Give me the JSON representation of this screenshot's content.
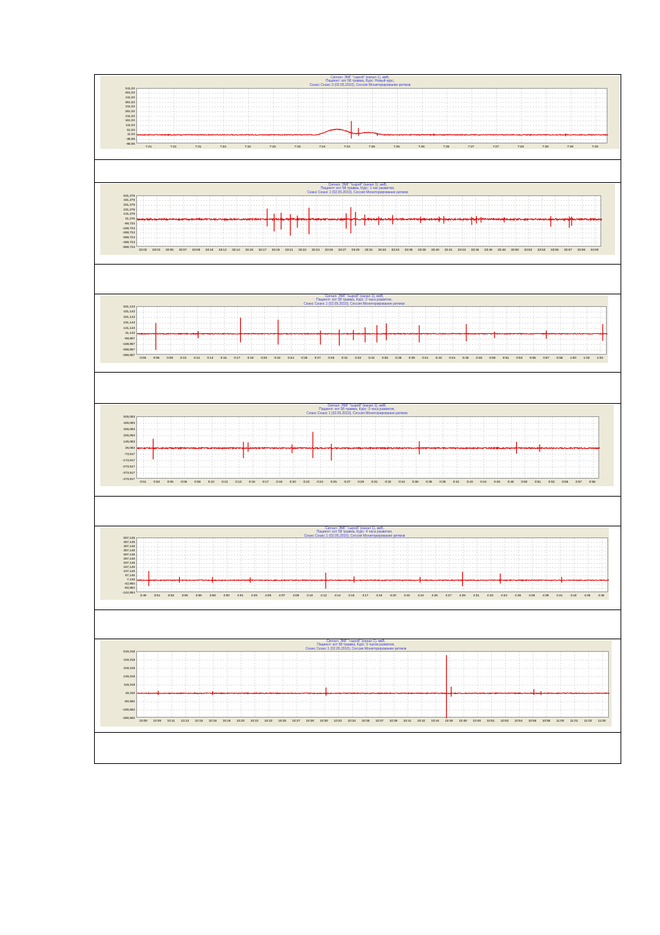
{
  "colors": {
    "signal": "#e10000",
    "header_text": "#3b3bd6",
    "panel_bg": "#ece9d8",
    "grid": "#bdbdbd"
  },
  "chart_data": [
    {
      "type": "line",
      "header": [
        "Сигнал: ЭМГ \"сырой\" (канал 1), мкВ,",
        "Пациент: кот 58 травма, Курс: Новый курс,",
        "Сеанс Сеанс 3 (02.05.2010), Сессия    Мониторирование ритмов"
      ],
      "y_ticks": [
        "511,04",
        "461,04",
        "411,04",
        "361,04",
        "311,04",
        "261,04",
        "211,04",
        "161,04",
        "111,04",
        "61,04",
        "11,04",
        "-38,96",
        "-88,96"
      ],
      "x_ticks": [
        "7:21",
        "7:21",
        "7:21",
        "7:22",
        "7:22",
        "7:23",
        "7:23",
        "7:24",
        "7:24",
        "7:25",
        "7:25",
        "7:26",
        "7:26",
        "7:27",
        "7:27",
        "7:28",
        "7:28",
        "7:29",
        "7:29"
      ],
      "ylim": [
        -88.96,
        511.04
      ],
      "baseline": 11.04,
      "noise": 4,
      "spikes": [
        {
          "pos": 0.425,
          "up": 60,
          "down": 0,
          "width": 0.05,
          "smooth": true
        },
        {
          "pos": 0.455,
          "up": 150,
          "down": 40,
          "width": 0.003
        },
        {
          "pos": 0.47,
          "up": 75,
          "down": 10,
          "width": 0.003
        },
        {
          "pos": 0.49,
          "up": 25,
          "down": 0,
          "width": 0.04,
          "smooth": true
        },
        {
          "pos": 0.51,
          "up": 20,
          "down": 10,
          "width": 0.003
        },
        {
          "pos": 0.63,
          "up": 15,
          "down": 10,
          "width": 0.003
        },
        {
          "pos": 0.91,
          "up": 15,
          "down": 15,
          "width": 0.003
        }
      ],
      "caption": ""
    },
    {
      "type": "line",
      "header": [
        "Сигнал: ЭМГ \"сырой\" (канал 1), мкВ,",
        "Пациент: кот 58 травма, Курс: 1 час развития,",
        "Сеанс Сеанс 1 (02.05.2010), Сессия    Мониторирование ритмов"
      ],
      "y_ticks": [
        "531,276",
        "431,276",
        "331,276",
        "231,276",
        "131,276",
        "31,276",
        "-68,724",
        "-168,724",
        "-268,724",
        "-368,724",
        "-468,724",
        "-568,724"
      ],
      "x_ticks": [
        "33:02",
        "33:03",
        "33:05",
        "33:07",
        "33:08",
        "33:10",
        "33:12",
        "33:14",
        "33:15",
        "33:17",
        "33:19",
        "33:21",
        "33:22",
        "33:24",
        "33:26",
        "33:27",
        "33:29",
        "33:31",
        "33:33",
        "33:34",
        "33:36",
        "33:38",
        "33:40",
        "33:41",
        "33:43",
        "33:45",
        "33:46",
        "33:48",
        "33:50",
        "33:52",
        "33:53",
        "33:55",
        "33:57",
        "33:59",
        "34:00"
      ],
      "ylim": [
        -568.724,
        531.276
      ],
      "baseline": 31.276,
      "noise": 18,
      "spikes": [
        {
          "pos": 0.28,
          "up": 230,
          "down": 150,
          "width": 0.003
        },
        {
          "pos": 0.295,
          "up": 120,
          "down": 260,
          "width": 0.003
        },
        {
          "pos": 0.31,
          "up": 140,
          "down": 220,
          "width": 0.003
        },
        {
          "pos": 0.33,
          "up": 110,
          "down": 350,
          "width": 0.003
        },
        {
          "pos": 0.345,
          "up": 80,
          "down": 180,
          "width": 0.003
        },
        {
          "pos": 0.37,
          "up": 250,
          "down": 320,
          "width": 0.003
        },
        {
          "pos": 0.45,
          "up": 130,
          "down": 200,
          "width": 0.003
        },
        {
          "pos": 0.46,
          "up": 260,
          "down": 300,
          "width": 0.003
        },
        {
          "pos": 0.47,
          "up": 160,
          "down": 140,
          "width": 0.003
        },
        {
          "pos": 0.49,
          "up": 100,
          "down": 130,
          "width": 0.003
        },
        {
          "pos": 0.52,
          "up": 60,
          "down": 120,
          "width": 0.003
        },
        {
          "pos": 0.55,
          "up": 90,
          "down": 110,
          "width": 0.003
        },
        {
          "pos": 0.61,
          "up": 60,
          "down": 80,
          "width": 0.003
        },
        {
          "pos": 0.65,
          "up": 60,
          "down": 60,
          "width": 0.003
        },
        {
          "pos": 0.66,
          "up": 70,
          "down": 90,
          "width": 0.003
        },
        {
          "pos": 0.72,
          "up": 55,
          "down": 120,
          "width": 0.003
        },
        {
          "pos": 0.73,
          "up": 70,
          "down": 90,
          "width": 0.003
        },
        {
          "pos": 0.74,
          "up": 50,
          "down": 70,
          "width": 0.003
        },
        {
          "pos": 0.79,
          "up": 45,
          "down": 70,
          "width": 0.003
        },
        {
          "pos": 0.89,
          "up": 70,
          "down": 160,
          "width": 0.003
        },
        {
          "pos": 0.93,
          "up": 60,
          "down": 180,
          "width": 0.003
        },
        {
          "pos": 0.935,
          "up": 60,
          "down": 140,
          "width": 0.003
        }
      ],
      "caption": ""
    },
    {
      "type": "line",
      "header": [
        "Сигнал: ЭМГ \"сырой\" (канал 1), мкВ,",
        "Пациент: кот 58 травма, Курс: 2 часа развития,",
        "Сеанс Сеанс 1 (02.05.2010), Сессия    Мониторирование ритмов"
      ],
      "y_ticks": [
        "531,143",
        "431,143",
        "331,143",
        "231,143",
        "131,143",
        "31,143",
        "-68,857",
        "-168,857",
        "-268,857",
        "-368,857"
      ],
      "x_ticks": [
        "0:05",
        "0:06",
        "0:08",
        "0:10",
        "0:12",
        "0:13",
        "0:15",
        "0:17",
        "0:19",
        "0:20",
        "0:22",
        "0:24",
        "0:25",
        "0:27",
        "0:29",
        "0:31",
        "0:32",
        "0:34",
        "0:36",
        "0:38",
        "0:39",
        "0:41",
        "0:43",
        "0:44",
        "0:46",
        "0:48",
        "0:50",
        "0:51",
        "0:53",
        "0:55",
        "0:57",
        "0:58",
        "1:00",
        "1:02",
        "1:03"
      ],
      "ylim": [
        -368.857,
        531.143
      ],
      "baseline": 31.143,
      "noise": 8,
      "spikes": [
        {
          "pos": 0.04,
          "up": 200,
          "down": 300,
          "width": 0.003
        },
        {
          "pos": 0.13,
          "up": 50,
          "down": 80,
          "width": 0.003
        },
        {
          "pos": 0.22,
          "up": 300,
          "down": 160,
          "width": 0.003
        },
        {
          "pos": 0.3,
          "up": 260,
          "down": 200,
          "width": 0.003
        },
        {
          "pos": 0.39,
          "up": 60,
          "down": 200,
          "width": 0.003
        },
        {
          "pos": 0.43,
          "up": 80,
          "down": 220,
          "width": 0.003
        },
        {
          "pos": 0.46,
          "up": 70,
          "down": 120,
          "width": 0.003
        },
        {
          "pos": 0.485,
          "up": 120,
          "down": 160,
          "width": 0.003
        },
        {
          "pos": 0.51,
          "up": 160,
          "down": 160,
          "width": 0.003
        },
        {
          "pos": 0.53,
          "up": 190,
          "down": 120,
          "width": 0.003
        },
        {
          "pos": 0.6,
          "up": 160,
          "down": 160,
          "width": 0.003
        },
        {
          "pos": 0.7,
          "up": 180,
          "down": 140,
          "width": 0.003
        },
        {
          "pos": 0.76,
          "up": 40,
          "down": 80,
          "width": 0.003
        },
        {
          "pos": 0.87,
          "up": 60,
          "down": 90,
          "width": 0.003
        },
        {
          "pos": 0.99,
          "up": 180,
          "down": 130,
          "width": 0.003
        }
      ],
      "caption": ""
    },
    {
      "type": "line",
      "header": [
        "Сигнал: ЭМГ \"сырой\" (канал 1), мкВ,",
        "Пациент: кот 58 травма, Курс: 3 часа развития,",
        "Сеанс Сеанс 1 (02.05.2010), Сессия    Мониторирование ритмов"
      ],
      "y_ticks": [
        "526,083",
        "426,083",
        "326,083",
        "226,083",
        "126,083",
        "26,083",
        "-73,917",
        "-173,917",
        "-273,917",
        "-373,917",
        "-473,917"
      ],
      "x_ticks": [
        "0:01",
        "0:03",
        "0:05",
        "0:06",
        "0:08",
        "0:10",
        "0:12",
        "0:13",
        "0:15",
        "0:17",
        "0:19",
        "0:20",
        "0:22",
        "0:24",
        "0:25",
        "0:27",
        "0:29",
        "0:31",
        "0:32",
        "0:34",
        "0:36",
        "0:38",
        "0:39",
        "0:41",
        "0:43",
        "0:44",
        "0:46",
        "0:48",
        "0:50",
        "0:51",
        "0:53",
        "0:55",
        "0:57",
        "0:58"
      ],
      "ylim": [
        -473.917,
        526.083
      ],
      "baseline": 26.083,
      "noise": 10,
      "spikes": [
        {
          "pos": 0.035,
          "up": 150,
          "down": 180,
          "width": 0.003
        },
        {
          "pos": 0.23,
          "up": 100,
          "down": 160,
          "width": 0.003
        },
        {
          "pos": 0.24,
          "up": 90,
          "down": 60,
          "width": 0.003
        },
        {
          "pos": 0.335,
          "up": 60,
          "down": 80,
          "width": 0.003
        },
        {
          "pos": 0.38,
          "up": 260,
          "down": 160,
          "width": 0.003
        },
        {
          "pos": 0.42,
          "up": 70,
          "down": 200,
          "width": 0.003
        },
        {
          "pos": 0.61,
          "up": 110,
          "down": 100,
          "width": 0.003
        },
        {
          "pos": 0.82,
          "up": 100,
          "down": 90,
          "width": 0.003
        },
        {
          "pos": 0.87,
          "up": 60,
          "down": 60,
          "width": 0.003
        }
      ],
      "caption": ""
    },
    {
      "type": "line",
      "header": [
        "Сигнал: ЭМГ \"сырой\" (канал 1), мкВ,",
        "Пациент: кот 58 травма, Курс: 4 часа развития,",
        "Сеанс Сеанс 1 (02.05.2010), Сессия    Мониторирование ритмов"
      ],
      "y_ticks": [
        "507,146",
        "457,146",
        "407,146",
        "357,146",
        "307,146",
        "257,146",
        "207,146",
        "157,146",
        "107,146",
        "57,146",
        "7,146",
        "-42,854",
        "-92,854",
        "-142,854"
      ],
      "x_ticks": [
        "3:49",
        "3:51",
        "3:53",
        "3:55",
        "3:56",
        "3:58",
        "4:00",
        "4:01",
        "4:03",
        "4:05",
        "4:07",
        "4:08",
        "4:10",
        "4:12",
        "4:14",
        "4:15",
        "4:17",
        "4:19",
        "4:20",
        "4:22",
        "4:24",
        "4:26",
        "4:27",
        "4:29",
        "4:31",
        "4:33",
        "4:34",
        "4:36",
        "4:38",
        "4:39",
        "4:41",
        "4:43",
        "4:45",
        "4:46"
      ],
      "ylim": [
        -142.854,
        507.146
      ],
      "baseline": 7.146,
      "noise": 5,
      "spikes": [
        {
          "pos": 0.025,
          "up": 110,
          "down": 70,
          "width": 0.003
        },
        {
          "pos": 0.09,
          "up": 40,
          "down": 30,
          "width": 0.003
        },
        {
          "pos": 0.16,
          "up": 40,
          "down": 30,
          "width": 0.003
        },
        {
          "pos": 0.24,
          "up": 35,
          "down": 30,
          "width": 0.003
        },
        {
          "pos": 0.4,
          "up": 90,
          "down": 100,
          "width": 0.003
        },
        {
          "pos": 0.46,
          "up": 45,
          "down": 30,
          "width": 0.003
        },
        {
          "pos": 0.6,
          "up": 40,
          "down": 30,
          "width": 0.003
        },
        {
          "pos": 0.69,
          "up": 100,
          "down": 70,
          "width": 0.003
        },
        {
          "pos": 0.77,
          "up": 80,
          "down": 40,
          "width": 0.003
        },
        {
          "pos": 0.9,
          "up": 40,
          "down": 30,
          "width": 0.003
        }
      ],
      "caption": ""
    },
    {
      "type": "line",
      "header": [
        "Сигнал: ЭМГ \"сырой\" (канал 1), мкВ,",
        "Пациент: кот 58 травма, Курс: 5 часов развития,",
        "Сеанс Сеанс 1 (02.05.2010), Сессия    Мониторирование ритмов"
      ],
      "y_ticks": [
        "519,318",
        "419,318",
        "319,318",
        "219,318",
        "119,318",
        "19,318",
        "-80,682",
        "-180,682",
        "-280,682"
      ],
      "x_ticks": [
        "10:08",
        "10:09",
        "10:11",
        "10:13",
        "10:15",
        "10:16",
        "10:18",
        "10:20",
        "10:22",
        "10:23",
        "10:25",
        "10:27",
        "10:28",
        "10:30",
        "10:32",
        "10:34",
        "10:35",
        "10:37",
        "10:39",
        "10:41",
        "10:42",
        "10:44",
        "10:46",
        "10:48",
        "10:49",
        "10:51",
        "10:53",
        "10:54",
        "10:56",
        "10:58",
        "11:00",
        "11:01",
        "11:03",
        "11:05"
      ],
      "ylim": [
        -280.682,
        519.318
      ],
      "baseline": 19.318,
      "noise": 5,
      "spikes": [
        {
          "pos": 0.045,
          "up": 30,
          "down": 20,
          "width": 0.003
        },
        {
          "pos": 0.16,
          "up": 25,
          "down": 20,
          "width": 0.003
        },
        {
          "pos": 0.4,
          "up": 70,
          "down": 30,
          "width": 0.003
        },
        {
          "pos": 0.655,
          "up": 460,
          "down": 300,
          "width": 0.003
        },
        {
          "pos": 0.665,
          "up": 80,
          "down": 40,
          "width": 0.003
        },
        {
          "pos": 0.84,
          "up": 50,
          "down": 20,
          "width": 0.003
        },
        {
          "pos": 0.855,
          "up": 25,
          "down": 20,
          "width": 0.003
        }
      ],
      "caption": ""
    }
  ]
}
